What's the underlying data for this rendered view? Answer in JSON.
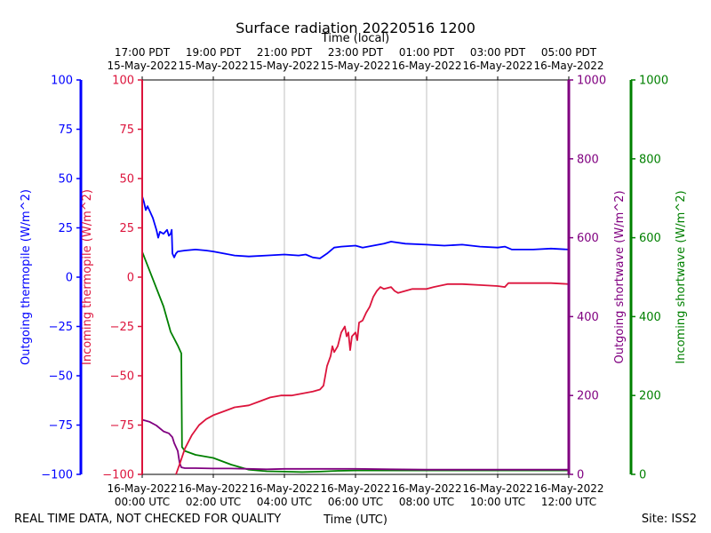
{
  "chart_data": {
    "type": "line",
    "title": "Surface radiation 20220516 1200",
    "top_axis_label": "Time (local)",
    "xlabel": "Time (UTC)",
    "footer_left": "REAL TIME DATA, NOT CHECKED FOR QUALITY",
    "footer_right": "Site: ISS2",
    "x_range_hours": [
      0,
      12
    ],
    "x_ticks_bottom": [
      {
        "hour": 0,
        "line1": "16-May-2022",
        "line2": "00:00 UTC"
      },
      {
        "hour": 2,
        "line1": "16-May-2022",
        "line2": "02:00 UTC"
      },
      {
        "hour": 4,
        "line1": "16-May-2022",
        "line2": "04:00 UTC"
      },
      {
        "hour": 6,
        "line1": "16-May-2022",
        "line2": "06:00 UTC"
      },
      {
        "hour": 8,
        "line1": "16-May-2022",
        "line2": "08:00 UTC"
      },
      {
        "hour": 10,
        "line1": "16-May-2022",
        "line2": "10:00 UTC"
      },
      {
        "hour": 12,
        "line1": "16-May-2022",
        "line2": "12:00 UTC"
      }
    ],
    "x_ticks_top": [
      {
        "hour": 0,
        "line1": "17:00 PDT",
        "line2": "15-May-2022"
      },
      {
        "hour": 2,
        "line1": "19:00 PDT",
        "line2": "15-May-2022"
      },
      {
        "hour": 4,
        "line1": "21:00 PDT",
        "line2": "15-May-2022"
      },
      {
        "hour": 6,
        "line1": "23:00 PDT",
        "line2": "15-May-2022"
      },
      {
        "hour": 8,
        "line1": "01:00 PDT",
        "line2": "16-May-2022"
      },
      {
        "hour": 10,
        "line1": "03:00 PDT",
        "line2": "16-May-2022"
      },
      {
        "hour": 12,
        "line1": "05:00 PDT",
        "line2": "16-May-2022"
      }
    ],
    "axes": {
      "outgoing_thermopile": {
        "label": "Outgoing thermopile (W/m^2)",
        "color": "#0000ff",
        "ylim": [
          -100,
          100
        ],
        "ticks": [
          "100",
          "75",
          "50",
          "25",
          "0",
          "−25",
          "−50",
          "−75",
          "−100"
        ]
      },
      "incoming_thermopile": {
        "label": "Incoming thermopile (W/m^2)",
        "color": "#dc143c",
        "ylim": [
          -100,
          100
        ],
        "ticks": [
          "100",
          "75",
          "50",
          "25",
          "0",
          "−25",
          "−50",
          "−75",
          "−100"
        ]
      },
      "outgoing_shortwave": {
        "label": "Outgoing shortwave (W/m^2)",
        "color": "#800080",
        "ylim": [
          -10,
          1000
        ],
        "ticks": [
          "1000",
          "800",
          "600",
          "400",
          "200",
          "0"
        ]
      },
      "incoming_shortwave": {
        "label": "Incoming shortwave (W/m^2)",
        "color": "#008000",
        "ylim": [
          -10,
          1000
        ],
        "ticks": [
          "1000",
          "800",
          "600",
          "400",
          "200",
          "0"
        ]
      }
    },
    "series": [
      {
        "name": "Outgoing thermopile",
        "axis": "outgoing_thermopile",
        "points": [
          [
            0,
            41
          ],
          [
            0.05,
            38
          ],
          [
            0.1,
            34
          ],
          [
            0.15,
            36
          ],
          [
            0.2,
            34
          ],
          [
            0.3,
            30
          ],
          [
            0.4,
            24
          ],
          [
            0.45,
            20
          ],
          [
            0.5,
            23
          ],
          [
            0.6,
            22
          ],
          [
            0.7,
            24
          ],
          [
            0.75,
            21
          ],
          [
            0.8,
            22
          ],
          [
            0.83,
            24
          ],
          [
            0.85,
            12
          ],
          [
            0.9,
            10
          ],
          [
            0.95,
            12
          ],
          [
            1.0,
            13
          ],
          [
            1.2,
            13.5
          ],
          [
            1.5,
            14
          ],
          [
            1.8,
            13.5
          ],
          [
            2.0,
            13
          ],
          [
            2.3,
            12
          ],
          [
            2.6,
            11
          ],
          [
            3.0,
            10.5
          ],
          [
            3.5,
            11
          ],
          [
            4.0,
            11.5
          ],
          [
            4.4,
            11
          ],
          [
            4.6,
            11.5
          ],
          [
            4.8,
            10
          ],
          [
            5.0,
            9.5
          ],
          [
            5.2,
            12
          ],
          [
            5.4,
            15
          ],
          [
            5.6,
            15.5
          ],
          [
            6.0,
            16
          ],
          [
            6.2,
            15
          ],
          [
            6.5,
            16
          ],
          [
            6.8,
            17
          ],
          [
            7.0,
            18
          ],
          [
            7.4,
            17
          ],
          [
            8.0,
            16.5
          ],
          [
            8.5,
            16
          ],
          [
            9.0,
            16.5
          ],
          [
            9.5,
            15.5
          ],
          [
            10.0,
            15
          ],
          [
            10.2,
            15.5
          ],
          [
            10.4,
            14
          ],
          [
            11.0,
            14
          ],
          [
            11.5,
            14.5
          ],
          [
            12.0,
            14
          ]
        ]
      },
      {
        "name": "Incoming thermopile",
        "axis": "incoming_thermopile",
        "points": [
          [
            0.95,
            -100
          ],
          [
            1.05,
            -95
          ],
          [
            1.2,
            -87
          ],
          [
            1.4,
            -80
          ],
          [
            1.6,
            -75
          ],
          [
            1.8,
            -72
          ],
          [
            2.0,
            -70
          ],
          [
            2.3,
            -68
          ],
          [
            2.6,
            -66
          ],
          [
            3.0,
            -65
          ],
          [
            3.3,
            -63
          ],
          [
            3.6,
            -61
          ],
          [
            3.9,
            -60
          ],
          [
            4.2,
            -60
          ],
          [
            4.5,
            -59
          ],
          [
            4.8,
            -58
          ],
          [
            5.0,
            -57
          ],
          [
            5.1,
            -55
          ],
          [
            5.2,
            -45
          ],
          [
            5.3,
            -40
          ],
          [
            5.35,
            -35
          ],
          [
            5.4,
            -38
          ],
          [
            5.5,
            -35
          ],
          [
            5.6,
            -28
          ],
          [
            5.7,
            -25
          ],
          [
            5.75,
            -30
          ],
          [
            5.8,
            -28
          ],
          [
            5.85,
            -37
          ],
          [
            5.9,
            -30
          ],
          [
            6.0,
            -28
          ],
          [
            6.05,
            -32
          ],
          [
            6.1,
            -23
          ],
          [
            6.2,
            -22
          ],
          [
            6.3,
            -18
          ],
          [
            6.4,
            -15
          ],
          [
            6.5,
            -10
          ],
          [
            6.6,
            -7
          ],
          [
            6.7,
            -5
          ],
          [
            6.8,
            -6
          ],
          [
            7.0,
            -5
          ],
          [
            7.1,
            -7
          ],
          [
            7.2,
            -8
          ],
          [
            7.4,
            -7
          ],
          [
            7.6,
            -6
          ],
          [
            8.0,
            -6
          ],
          [
            8.2,
            -5
          ],
          [
            8.6,
            -3.5
          ],
          [
            9.0,
            -3.5
          ],
          [
            9.5,
            -4
          ],
          [
            10.0,
            -4.5
          ],
          [
            10.2,
            -5
          ],
          [
            10.3,
            -3
          ],
          [
            11.0,
            -3
          ],
          [
            11.5,
            -3
          ],
          [
            12.0,
            -3.5
          ]
        ]
      },
      {
        "name": "Outgoing shortwave",
        "axis": "outgoing_shortwave",
        "points": [
          [
            0,
            130
          ],
          [
            0.2,
            125
          ],
          [
            0.4,
            115
          ],
          [
            0.6,
            100
          ],
          [
            0.75,
            95
          ],
          [
            0.85,
            85
          ],
          [
            0.9,
            70
          ],
          [
            1.0,
            50
          ],
          [
            1.05,
            20
          ],
          [
            1.1,
            8
          ],
          [
            1.2,
            6
          ],
          [
            1.5,
            6
          ],
          [
            2.0,
            5
          ],
          [
            2.5,
            5
          ],
          [
            3.0,
            4
          ],
          [
            3.5,
            3
          ],
          [
            4.0,
            4
          ],
          [
            5.0,
            4
          ],
          [
            6.0,
            4
          ],
          [
            7.0,
            3
          ],
          [
            8.0,
            2
          ],
          [
            9.0,
            2
          ],
          [
            10.0,
            2
          ],
          [
            11.0,
            2
          ],
          [
            12.0,
            2
          ]
        ]
      },
      {
        "name": "Incoming shortwave",
        "axis": "incoming_shortwave",
        "points": [
          [
            0,
            560
          ],
          [
            0.3,
            490
          ],
          [
            0.6,
            420
          ],
          [
            0.8,
            355
          ],
          [
            1.0,
            320
          ],
          [
            1.1,
            300
          ],
          [
            1.12,
            60
          ],
          [
            1.2,
            50
          ],
          [
            1.5,
            40
          ],
          [
            2.0,
            32
          ],
          [
            2.5,
            15
          ],
          [
            3.0,
            2
          ],
          [
            3.5,
            -2
          ],
          [
            4.0,
            -3
          ],
          [
            4.5,
            -4
          ],
          [
            5.0,
            -3
          ],
          [
            5.5,
            -1
          ],
          [
            6.0,
            0
          ],
          [
            6.5,
            0
          ],
          [
            7.0,
            0
          ],
          [
            8.0,
            0
          ],
          [
            12.0,
            0
          ]
        ]
      }
    ]
  }
}
